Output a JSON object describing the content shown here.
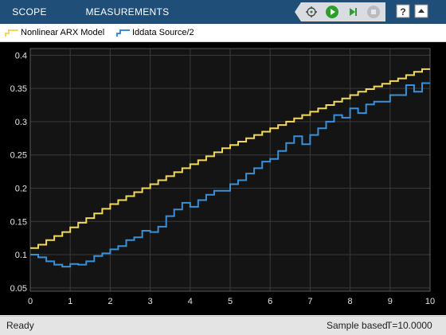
{
  "tabs": [
    {
      "label": "SCOPE"
    },
    {
      "label": "MEASUREMENTS"
    }
  ],
  "toolbar_buttons": [
    "pointer-icon",
    "run-icon",
    "step-forward-icon",
    "stop-icon",
    "help-icon",
    "collapse-icon"
  ],
  "legend": {
    "items": [
      {
        "label": "Nonlinear ARX Model",
        "color": "#f2d95e"
      },
      {
        "label": "Iddata Source/2",
        "color": "#3a90d8"
      }
    ]
  },
  "status": {
    "ready": "Ready",
    "mode": "Sample based",
    "time": "T=10.0000"
  },
  "chart_data": {
    "type": "line",
    "drawstyle": "steps-post",
    "xlim": [
      0,
      10
    ],
    "ylim": [
      0.045,
      0.41
    ],
    "xticks": [
      "0",
      "1",
      "2",
      "3",
      "4",
      "5",
      "6",
      "7",
      "8",
      "9",
      "10"
    ],
    "yticks": [
      {
        "value": 0.05,
        "label": "0.05"
      },
      {
        "value": 0.1,
        "label": "0.1"
      },
      {
        "value": 0.15,
        "label": "0.15"
      },
      {
        "value": 0.2,
        "label": "0.2"
      },
      {
        "value": 0.25,
        "label": "0.25"
      },
      {
        "value": 0.3,
        "label": "0.3"
      },
      {
        "value": 0.35,
        "label": "0.35"
      },
      {
        "value": 0.4,
        "label": "0.4"
      }
    ],
    "grid": true,
    "background": "#141414",
    "series": [
      {
        "name": "Nonlinear ARX Model",
        "color": "#f2d95e",
        "x": [
          0.0,
          0.2,
          0.4,
          0.6,
          0.8,
          1.0,
          1.2,
          1.4,
          1.6,
          1.8,
          2.0,
          2.2,
          2.4,
          2.6,
          2.8,
          3.0,
          3.2,
          3.4,
          3.6,
          3.8,
          4.0,
          4.2,
          4.4,
          4.6,
          4.8,
          5.0,
          5.2,
          5.4,
          5.6,
          5.8,
          6.0,
          6.2,
          6.4,
          6.6,
          6.8,
          7.0,
          7.2,
          7.4,
          7.6,
          7.8,
          8.0,
          8.2,
          8.4,
          8.6,
          8.8,
          9.0,
          9.2,
          9.4,
          9.6,
          9.8
        ],
        "values": [
          0.11,
          0.115,
          0.122,
          0.128,
          0.134,
          0.141,
          0.148,
          0.155,
          0.162,
          0.169,
          0.176,
          0.182,
          0.188,
          0.194,
          0.2,
          0.206,
          0.212,
          0.218,
          0.224,
          0.23,
          0.236,
          0.242,
          0.248,
          0.254,
          0.26,
          0.265,
          0.27,
          0.275,
          0.28,
          0.285,
          0.29,
          0.295,
          0.3,
          0.305,
          0.31,
          0.315,
          0.32,
          0.325,
          0.33,
          0.335,
          0.34,
          0.345,
          0.349,
          0.353,
          0.357,
          0.361,
          0.365,
          0.37,
          0.375,
          0.379
        ]
      },
      {
        "name": "Iddata Source/2",
        "color": "#3a90d8",
        "x": [
          0.0,
          0.2,
          0.4,
          0.6,
          0.8,
          1.0,
          1.2,
          1.4,
          1.6,
          1.8,
          2.0,
          2.2,
          2.4,
          2.6,
          2.8,
          3.0,
          3.2,
          3.4,
          3.6,
          3.8,
          4.0,
          4.2,
          4.4,
          4.6,
          4.8,
          5.0,
          5.2,
          5.4,
          5.6,
          5.8,
          6.0,
          6.2,
          6.4,
          6.6,
          6.8,
          7.0,
          7.2,
          7.4,
          7.6,
          7.8,
          8.0,
          8.2,
          8.4,
          8.6,
          8.8,
          9.0,
          9.2,
          9.4,
          9.6,
          9.8
        ],
        "values": [
          0.1,
          0.096,
          0.09,
          0.085,
          0.082,
          0.086,
          0.085,
          0.09,
          0.098,
          0.102,
          0.108,
          0.113,
          0.122,
          0.126,
          0.136,
          0.134,
          0.142,
          0.158,
          0.168,
          0.178,
          0.172,
          0.182,
          0.19,
          0.196,
          0.196,
          0.206,
          0.212,
          0.222,
          0.23,
          0.24,
          0.244,
          0.256,
          0.268,
          0.278,
          0.266,
          0.28,
          0.29,
          0.3,
          0.31,
          0.306,
          0.32,
          0.313,
          0.326,
          0.33,
          0.33,
          0.34,
          0.34,
          0.355,
          0.345,
          0.358
        ]
      }
    ]
  }
}
